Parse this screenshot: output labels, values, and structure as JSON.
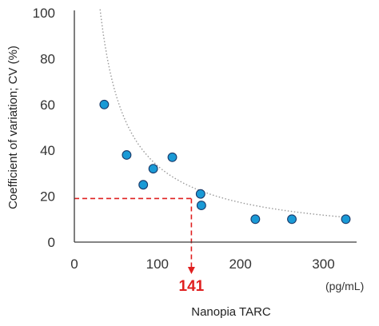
{
  "chart_data": {
    "type": "scatter",
    "title": "",
    "xlabel": "Nanopia TARC",
    "xunit": "(pg/mL)",
    "ylabel": "Coefficient of variation; CV (%)",
    "xlim": [
      0,
      340
    ],
    "ylim": [
      0,
      100
    ],
    "xticks": [
      0,
      100,
      200,
      300
    ],
    "yticks": [
      0,
      20,
      40,
      60,
      80,
      100
    ],
    "grid": false,
    "points": [
      {
        "x": 36,
        "y": 60
      },
      {
        "x": 63,
        "y": 38
      },
      {
        "x": 83,
        "y": 25
      },
      {
        "x": 95,
        "y": 32
      },
      {
        "x": 118,
        "y": 37
      },
      {
        "x": 152,
        "y": 21
      },
      {
        "x": 153,
        "y": 16
      },
      {
        "x": 218,
        "y": 10
      },
      {
        "x": 262,
        "y": 10
      },
      {
        "x": 327,
        "y": 10
      }
    ],
    "trendline": {
      "type": "power",
      "a": 2650,
      "b": -0.95,
      "style": "dotted",
      "color": "#9a9a9a"
    },
    "threshold": {
      "x": 141,
      "y": 19,
      "label": "141",
      "color": "#e02020"
    },
    "marker_color": "#1a9ad6",
    "marker_edge": "#1a3a6a"
  }
}
